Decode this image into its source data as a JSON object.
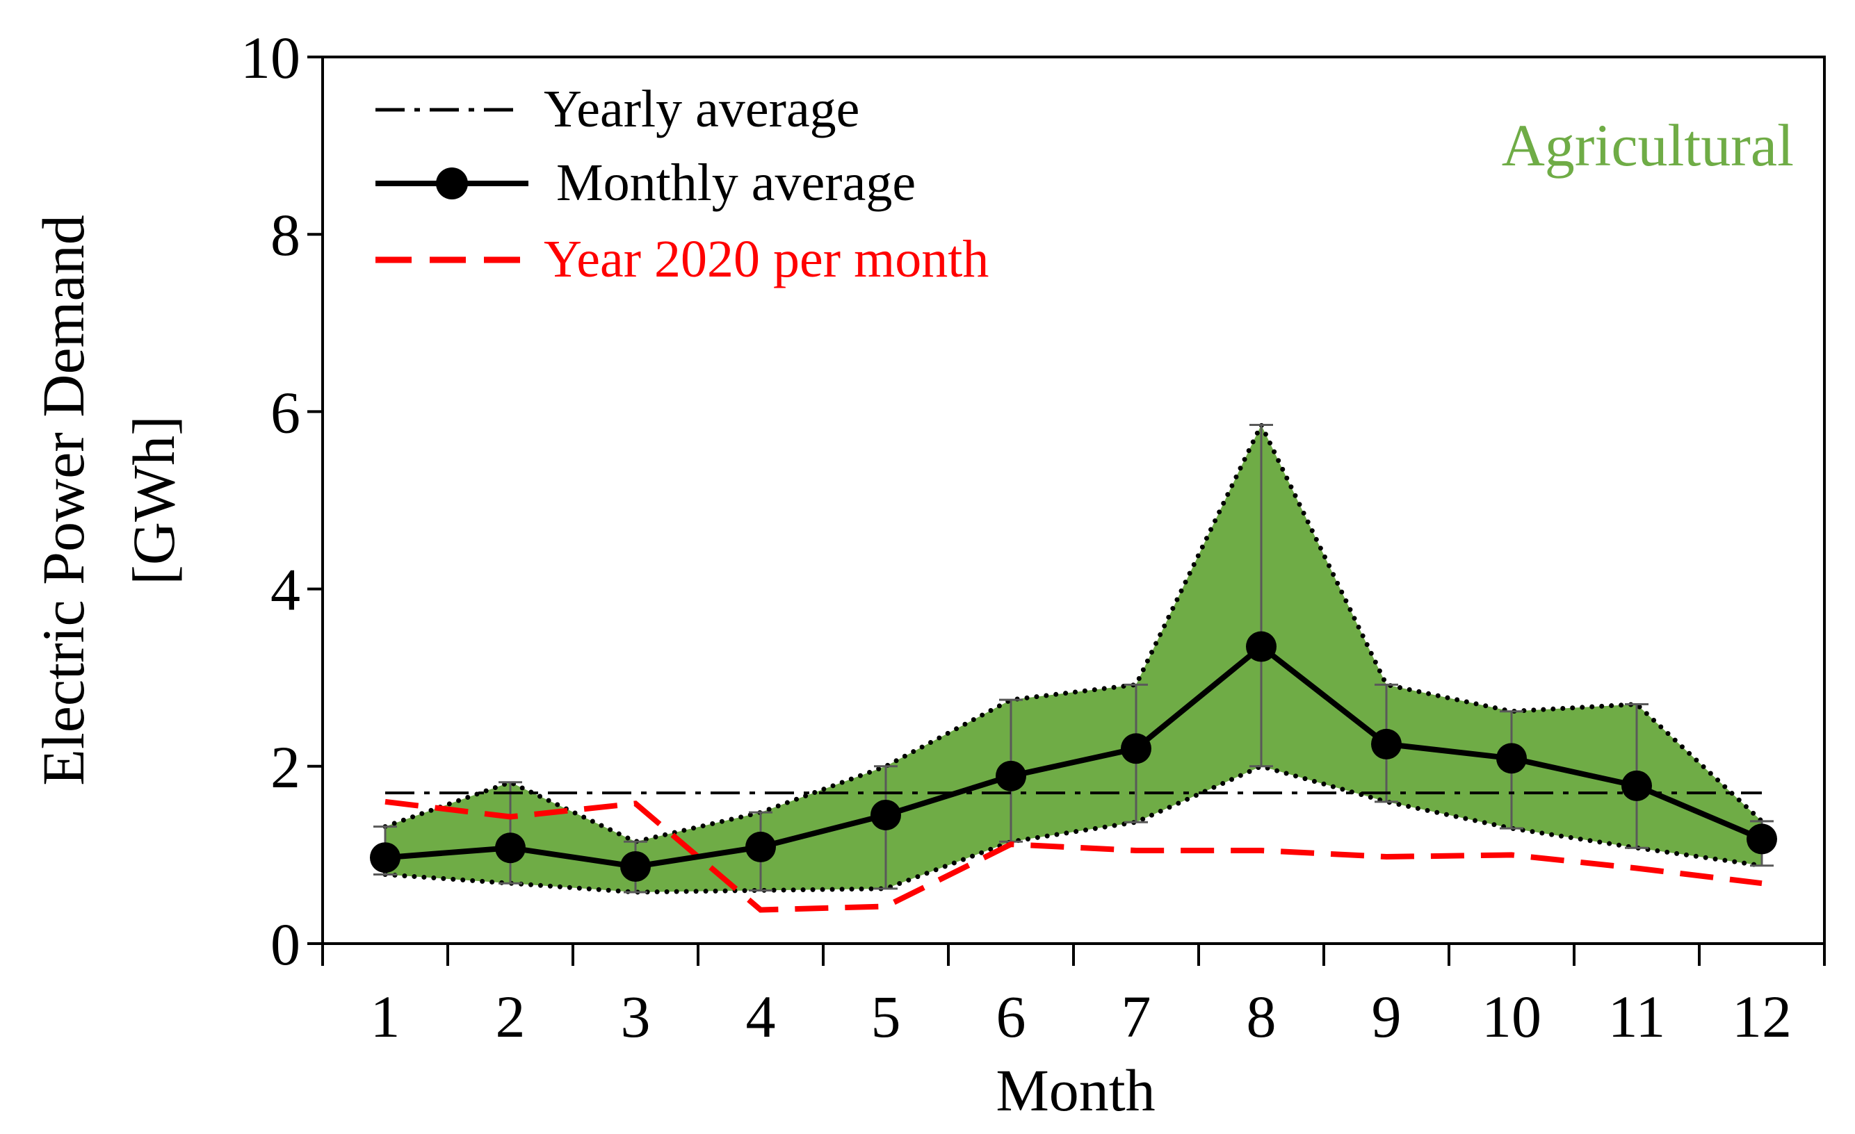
{
  "chart_data": {
    "type": "line",
    "title": "",
    "annotation": "Agricultural",
    "xlabel": "Month",
    "ylabel_line1": "Electric Power Demand",
    "ylabel_line2": "[GWh]",
    "categories": [
      "1",
      "2",
      "3",
      "4",
      "5",
      "6",
      "7",
      "8",
      "9",
      "10",
      "11",
      "12"
    ],
    "ylim": [
      0,
      10
    ],
    "yticks": [
      0,
      2,
      4,
      6,
      8,
      10
    ],
    "ytick_labels": [
      "0",
      "2",
      "4",
      "6",
      "8",
      "10"
    ],
    "grid": false,
    "legend_position": "top-left",
    "series": [
      {
        "name": "Yearly average",
        "style": "dash-dot",
        "values": [
          1.7,
          1.7,
          1.7,
          1.7,
          1.7,
          1.7,
          1.7,
          1.7,
          1.7,
          1.7,
          1.7,
          1.7
        ]
      },
      {
        "name": "Monthly average",
        "style": "solid-markers",
        "values": [
          0.97,
          1.08,
          0.87,
          1.09,
          1.45,
          1.89,
          2.2,
          3.35,
          2.25,
          2.09,
          1.78,
          1.18
        ]
      },
      {
        "name": "Year 2020 per month",
        "style": "dashed",
        "values": [
          1.6,
          1.43,
          1.58,
          0.38,
          0.42,
          1.12,
          1.05,
          1.05,
          0.98,
          1.0,
          0.85,
          0.68
        ]
      }
    ],
    "band_upper": [
      1.32,
      1.82,
      1.15,
      1.48,
      2.0,
      2.75,
      2.92,
      5.85,
      2.92,
      2.62,
      2.7,
      1.38
    ],
    "band_lower": [
      0.78,
      0.68,
      0.58,
      0.6,
      0.62,
      1.15,
      1.37,
      2.0,
      1.6,
      1.3,
      1.08,
      0.88
    ]
  },
  "colors": {
    "band_fill": "#6fac46",
    "annotation": "#6fac46",
    "monthly": "#000000",
    "yearly": "#000000",
    "year2020": "#ff0000",
    "error_bar": "#595959"
  }
}
